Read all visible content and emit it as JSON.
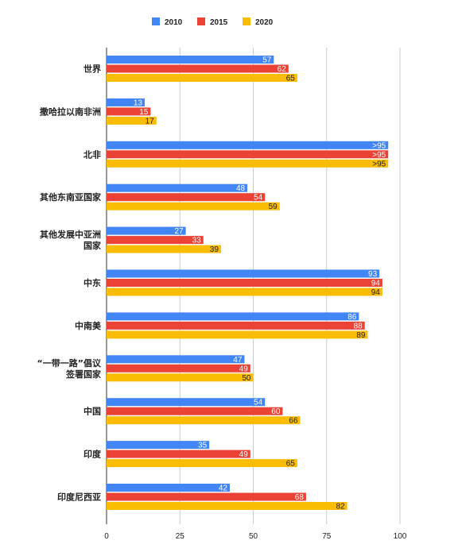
{
  "chart_data": {
    "type": "bar",
    "orientation": "horizontal",
    "categories": [
      [
        "世界"
      ],
      [
        "撒哈拉以南非洲"
      ],
      [
        "北非"
      ],
      [
        "其他东南亚国家"
      ],
      [
        "其他发展中亚洲",
        "国家"
      ],
      [
        "中东"
      ],
      [
        "中南美"
      ],
      [
        "“一带一路”倡议",
        "签署国家"
      ],
      [
        "中国"
      ],
      [
        "印度"
      ],
      [
        "印度尼西亚"
      ]
    ],
    "series": [
      {
        "name": "2010",
        "color": "#4285F4",
        "values": [
          57,
          13,
          96,
          48,
          27,
          93,
          86,
          47,
          54,
          35,
          42
        ],
        "labels": [
          "57",
          "13",
          ">95",
          "48",
          "27",
          "93",
          "86",
          "47",
          "54",
          "35",
          "42"
        ]
      },
      {
        "name": "2015",
        "color": "#EA4335",
        "values": [
          62,
          15,
          96,
          54,
          33,
          94,
          88,
          49,
          60,
          49,
          68
        ],
        "labels": [
          "62",
          "15",
          ">95",
          "54",
          "33",
          "94",
          "88",
          "49",
          "60",
          "49",
          "68"
        ]
      },
      {
        "name": "2020",
        "color": "#FBBC04",
        "values": [
          65,
          17,
          96,
          59,
          39,
          94,
          89,
          50,
          66,
          65,
          82
        ],
        "labels": [
          "65",
          "17",
          ">95",
          "59",
          "39",
          "94",
          "89",
          "50",
          "66",
          "65",
          "82"
        ]
      }
    ],
    "xlim": [
      0,
      100
    ],
    "xticks": [
      "0",
      "25",
      "50",
      "75",
      "100"
    ],
    "grid": true,
    "legend": "top-center"
  }
}
